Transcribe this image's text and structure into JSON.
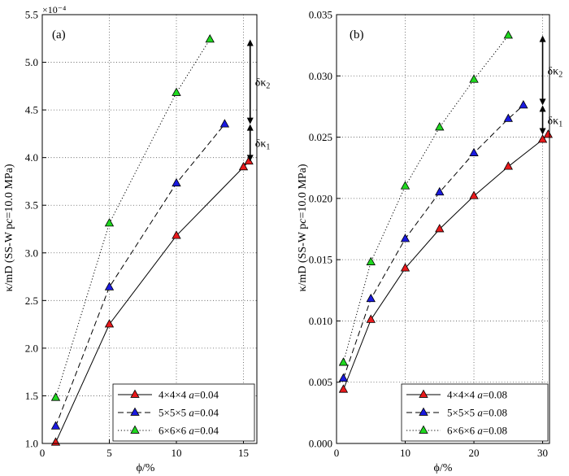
{
  "chart_data": [
    {
      "type": "line",
      "panel_label": "(a)",
      "multiplier": "×10⁻⁴",
      "xlabel": "ϕ/%",
      "ylabel": "κ/mD (SS-W pc=10.0 MPa)",
      "xlim": [
        0,
        16
      ],
      "ylim": [
        1.0,
        5.5
      ],
      "xticks": [
        0,
        5,
        10,
        15
      ],
      "yticks": [
        1.0,
        1.5,
        2.0,
        2.5,
        3.0,
        3.5,
        4.0,
        4.5,
        5.0,
        5.5
      ],
      "ytick_labels": [
        "1.0",
        "1.5",
        "2.0",
        "2.5",
        "3.0",
        "3.5",
        "4.0",
        "4.5",
        "5.0",
        "5.5"
      ],
      "xtick_labels": [
        "0",
        "5",
        "10",
        "15"
      ],
      "grid": true,
      "legend_position": "bottom-right",
      "series": [
        {
          "name": "4×4×4 a=0.04",
          "color": "#e8191b",
          "dash": "solid",
          "x": [
            1.0,
            5.0,
            10.0,
            15.0,
            15.4
          ],
          "y": [
            1.01,
            2.25,
            3.18,
            3.9,
            3.96
          ]
        },
        {
          "name": "5×5×5 a=0.04",
          "color": "#1a1adf",
          "dash": "dashed",
          "x": [
            1.0,
            5.0,
            10.0,
            13.6
          ],
          "y": [
            1.18,
            2.64,
            3.73,
            4.35
          ]
        },
        {
          "name": "6×6×6 a=0.04",
          "color": "#1fd81f",
          "dash": "dotted",
          "x": [
            1.0,
            5.0,
            10.0,
            12.5
          ],
          "y": [
            1.48,
            3.31,
            4.68,
            5.24
          ]
        }
      ],
      "annotations": [
        {
          "label": "δκ2",
          "main": "δκ",
          "sub": "2",
          "from": 4.35,
          "to": 5.24,
          "x": 15.5
        },
        {
          "label": "δκ1",
          "main": "δκ",
          "sub": "1",
          "from": 3.96,
          "to": 4.35,
          "x": 15.5
        }
      ]
    },
    {
      "type": "line",
      "panel_label": "(b)",
      "multiplier": "",
      "xlabel": "ϕ/%",
      "ylabel": "κ/mD (SS-W pc=10.0 MPa)",
      "xlim": [
        0,
        31
      ],
      "ylim": [
        0.0,
        0.035
      ],
      "xticks": [
        0,
        10,
        20,
        30
      ],
      "yticks": [
        0.0,
        0.005,
        0.01,
        0.015,
        0.02,
        0.025,
        0.03,
        0.035
      ],
      "ytick_labels": [
        "0.000",
        "0.005",
        "0.010",
        "0.015",
        "0.020",
        "0.025",
        "0.030",
        "0.035"
      ],
      "xtick_labels": [
        "0",
        "10",
        "20",
        "30"
      ],
      "grid": true,
      "legend_position": "bottom-right",
      "series": [
        {
          "name": "4×4×4 a=0.08",
          "color": "#e8191b",
          "dash": "solid",
          "x": [
            1.0,
            5.0,
            10.0,
            15.0,
            20.0,
            25.0,
            30.0,
            30.8
          ],
          "y": [
            0.0044,
            0.0101,
            0.0143,
            0.0175,
            0.0202,
            0.0226,
            0.0248,
            0.0252
          ]
        },
        {
          "name": "5×5×5 a=0.08",
          "color": "#1a1adf",
          "dash": "dashed",
          "x": [
            1.0,
            5.0,
            10.0,
            15.0,
            20.0,
            25.0,
            27.2
          ],
          "y": [
            0.0053,
            0.0118,
            0.0167,
            0.0205,
            0.0237,
            0.0265,
            0.0276
          ]
        },
        {
          "name": "6×6×6 a=0.08",
          "color": "#1fd81f",
          "dash": "dotted",
          "x": [
            1.0,
            5.0,
            10.0,
            15.0,
            20.0,
            25.0
          ],
          "y": [
            0.0066,
            0.0148,
            0.021,
            0.0258,
            0.0297,
            0.0333
          ]
        }
      ],
      "annotations": [
        {
          "label": "δκ2",
          "main": "δκ",
          "sub": "2",
          "from": 0.0276,
          "to": 0.0333,
          "x": 30.0
        },
        {
          "label": "δκ1",
          "main": "δκ",
          "sub": "1",
          "from": 0.0252,
          "to": 0.0276,
          "x": 30.0
        }
      ]
    }
  ]
}
